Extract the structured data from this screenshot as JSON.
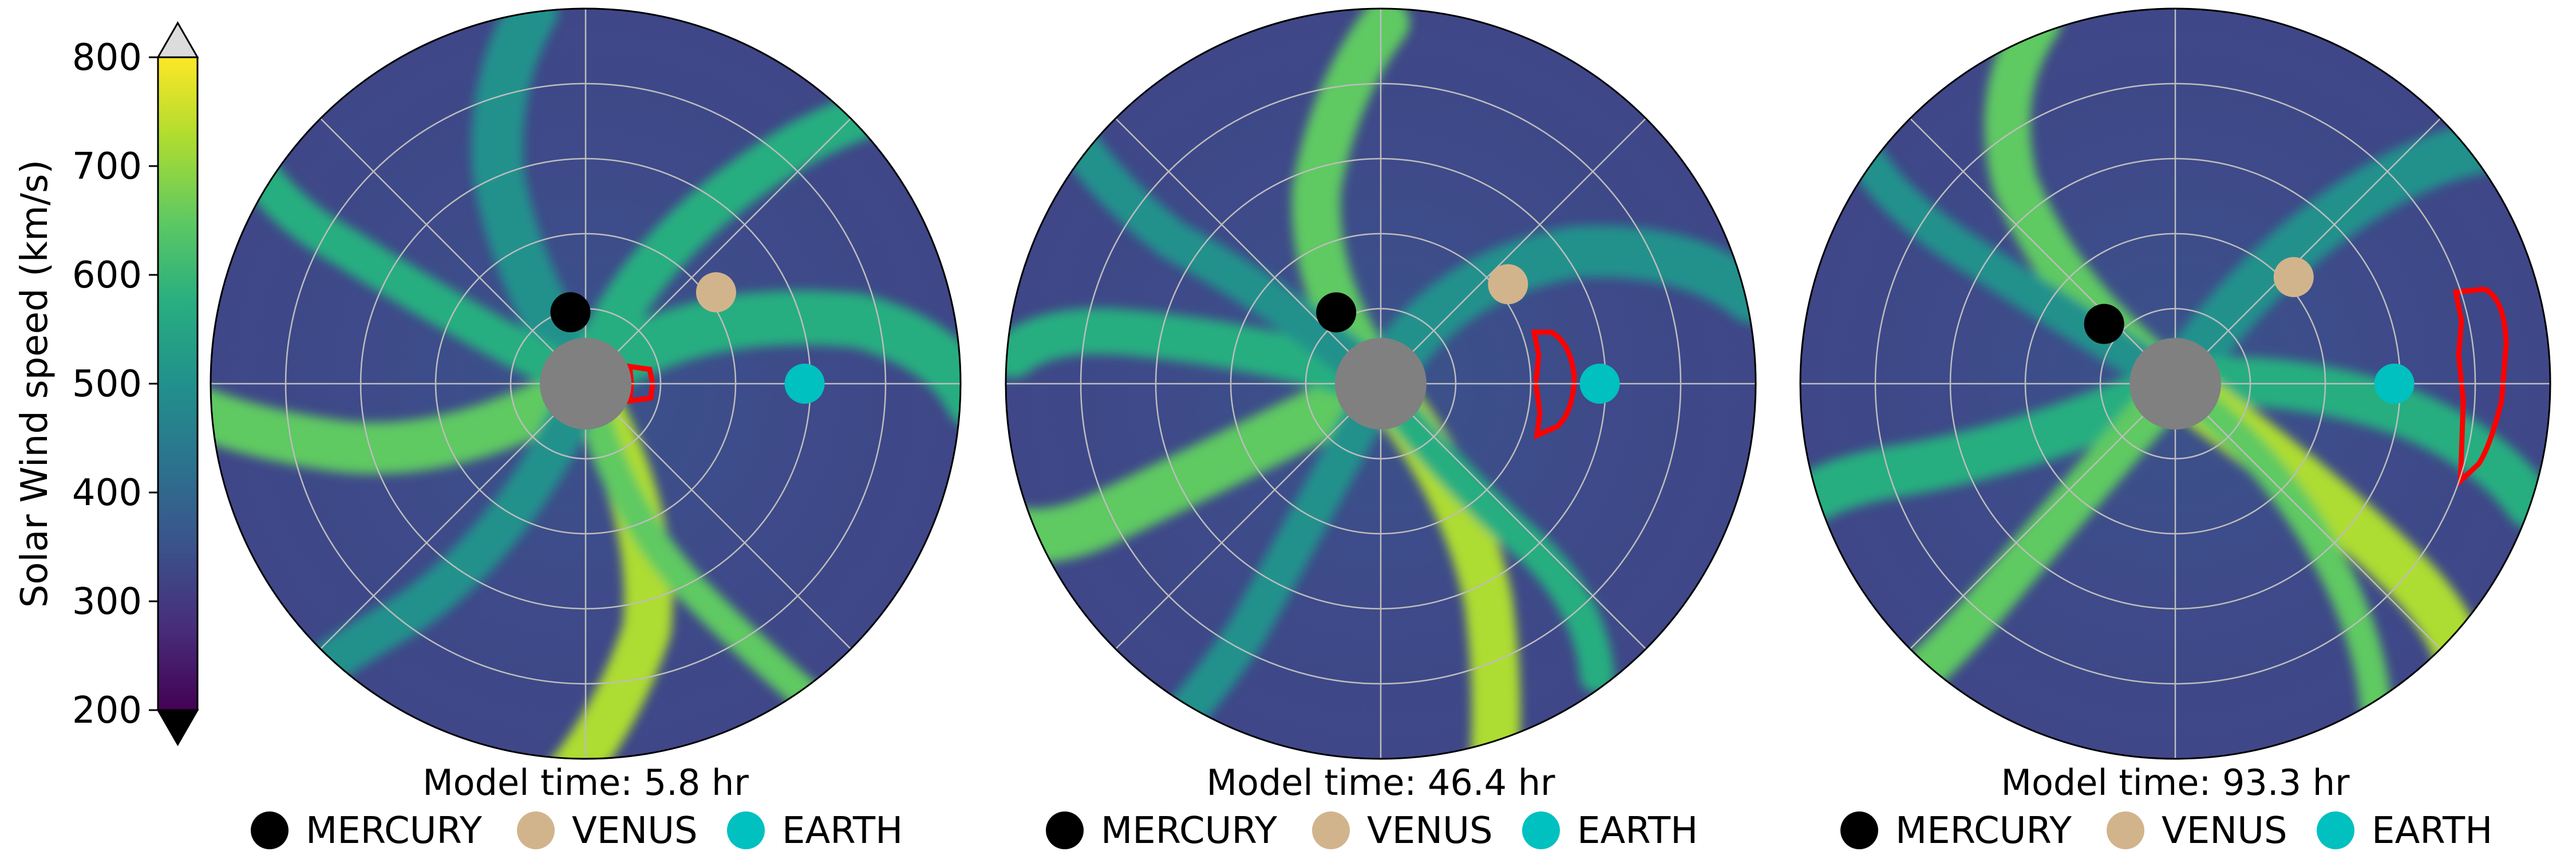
{
  "chart_data": {
    "type": "heatmap",
    "projection": "polar",
    "colorbar": {
      "label": "Solar Wind speed (km/s)",
      "min": 200,
      "max": 800,
      "ticks": [
        200,
        300,
        400,
        500,
        600,
        700,
        800
      ],
      "colormap": "viridis",
      "extend": "both",
      "over_color": "#dcdcdc",
      "under_color": "#000000"
    },
    "grid": true,
    "sun_color": "#808080",
    "cme_color": "#ff0000",
    "panels": [
      {
        "title": "Model time: 5.8 hr",
        "bodies": [
          {
            "name": "MERCURY",
            "color": "#000000",
            "r": 0.33,
            "lon_deg": 102
          },
          {
            "name": "VENUS",
            "color": "#d2b48c",
            "r": 0.72,
            "lon_deg": 35
          },
          {
            "name": "EARTH",
            "color": "#00c0c0",
            "r": 0.99,
            "lon_deg": 0
          }
        ]
      },
      {
        "title": "Model time: 46.4 hr",
        "bodies": [
          {
            "name": "MERCURY",
            "color": "#000000",
            "r": 0.38,
            "lon_deg": 122
          },
          {
            "name": "VENUS",
            "color": "#d2b48c",
            "r": 0.73,
            "lon_deg": 38
          },
          {
            "name": "EARTH",
            "color": "#00c0c0",
            "r": 0.99,
            "lon_deg": 0
          }
        ]
      },
      {
        "title": "Model time: 93.3 hr",
        "bodies": [
          {
            "name": "MERCURY",
            "color": "#000000",
            "r": 0.42,
            "lon_deg": 140
          },
          {
            "name": "VENUS",
            "color": "#d2b48c",
            "r": 0.72,
            "lon_deg": 42
          },
          {
            "name": "EARTH",
            "color": "#00c0c0",
            "r": 0.99,
            "lon_deg": 0
          }
        ]
      }
    ]
  }
}
